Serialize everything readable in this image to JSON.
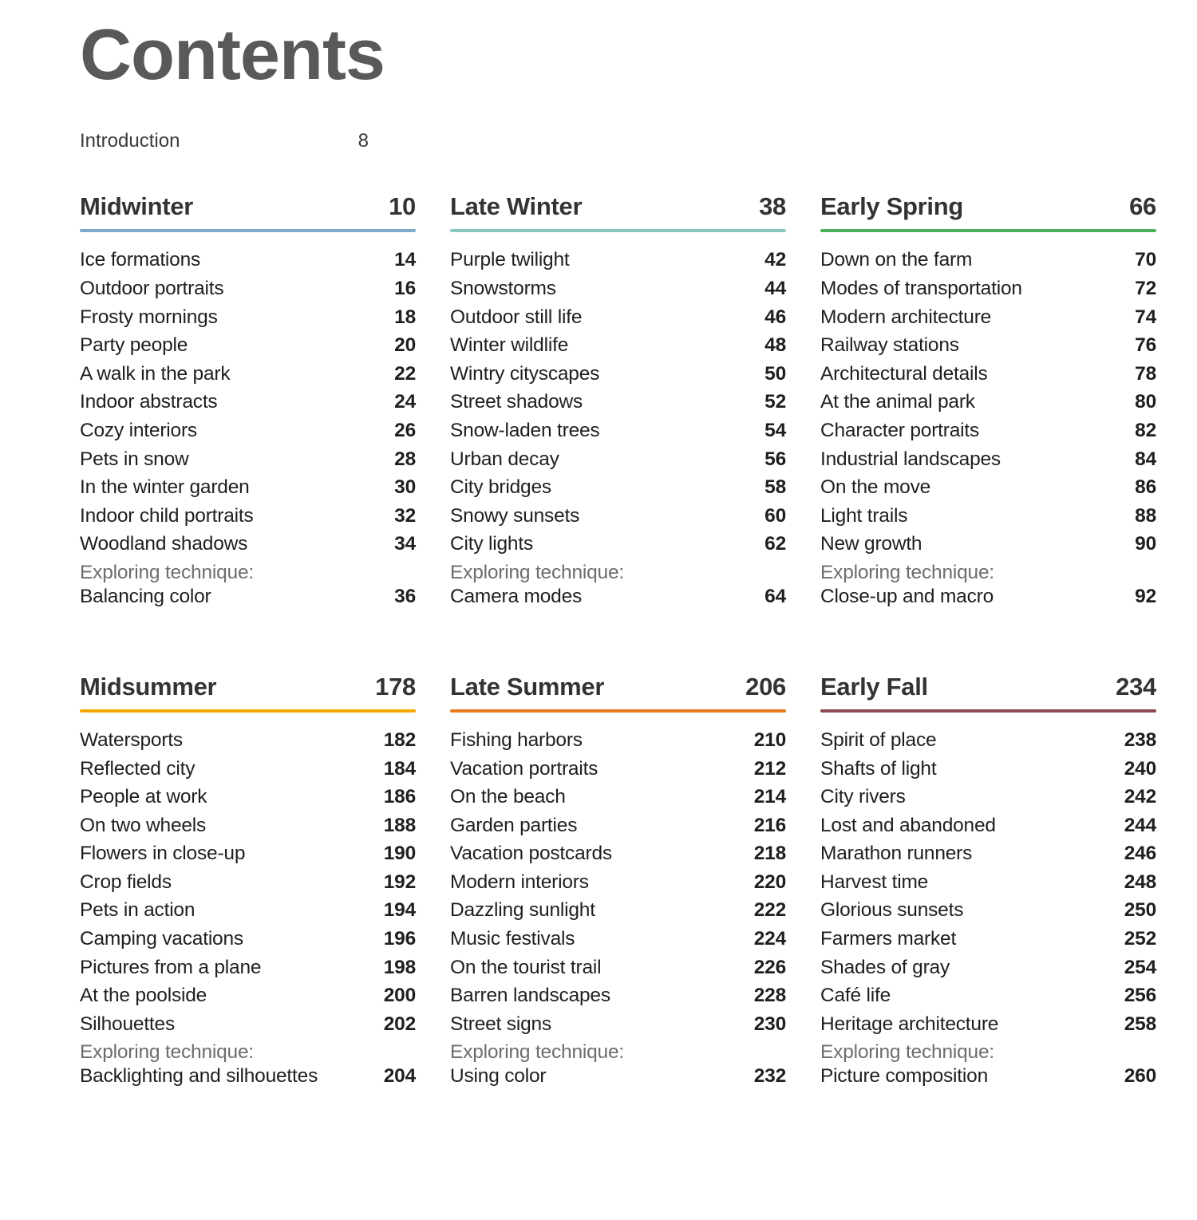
{
  "page": {
    "title": "Contents",
    "intro": {
      "label": "Introduction",
      "page": "8"
    }
  },
  "technique_prefix": "Exploring technique:",
  "sections": [
    {
      "title": "Midwinter",
      "page": "10",
      "rule_color": "#7dabc9",
      "entries": [
        {
          "label": "Ice formations",
          "page": "14"
        },
        {
          "label": "Outdoor portraits",
          "page": "16"
        },
        {
          "label": "Frosty mornings",
          "page": "18"
        },
        {
          "label": "Party people",
          "page": "20"
        },
        {
          "label": "A walk in the park",
          "page": "22"
        },
        {
          "label": "Indoor abstracts",
          "page": "24"
        },
        {
          "label": "Cozy interiors",
          "page": "26"
        },
        {
          "label": "Pets in snow",
          "page": "28"
        },
        {
          "label": "In the winter garden",
          "page": "30"
        },
        {
          "label": "Indoor child portraits",
          "page": "32"
        },
        {
          "label": "Woodland shadows",
          "page": "34"
        }
      ],
      "technique": {
        "label": "Balancing color",
        "page": "36"
      }
    },
    {
      "title": "Late Winter",
      "page": "38",
      "rule_color": "#8ac6c1",
      "entries": [
        {
          "label": "Purple twilight",
          "page": "42"
        },
        {
          "label": "Snowstorms",
          "page": "44"
        },
        {
          "label": "Outdoor still life",
          "page": "46"
        },
        {
          "label": "Winter wildlife",
          "page": "48"
        },
        {
          "label": "Wintry cityscapes",
          "page": "50"
        },
        {
          "label": "Street shadows",
          "page": "52"
        },
        {
          "label": "Snow-laden trees",
          "page": "54"
        },
        {
          "label": "Urban decay",
          "page": "56"
        },
        {
          "label": "City bridges",
          "page": "58"
        },
        {
          "label": "Snowy sunsets",
          "page": "60"
        },
        {
          "label": "City lights",
          "page": "62"
        }
      ],
      "technique": {
        "label": "Camera modes",
        "page": "64"
      }
    },
    {
      "title": "Early Spring",
      "page": "66",
      "rule_color": "#4cae59",
      "entries": [
        {
          "label": "Down on the farm",
          "page": "70"
        },
        {
          "label": "Modes of transportation",
          "page": "72"
        },
        {
          "label": "Modern architecture",
          "page": "74"
        },
        {
          "label": "Railway stations",
          "page": "76"
        },
        {
          "label": "Architectural details",
          "page": "78"
        },
        {
          "label": "At the animal park",
          "page": "80"
        },
        {
          "label": "Character portraits",
          "page": "82"
        },
        {
          "label": "Industrial landscapes",
          "page": "84"
        },
        {
          "label": "On the move",
          "page": "86"
        },
        {
          "label": "Light trails",
          "page": "88"
        },
        {
          "label": "New growth",
          "page": "90"
        }
      ],
      "technique": {
        "label": "Close-up and macro",
        "page": "92"
      }
    },
    {
      "title": "Midsummer",
      "page": "178",
      "rule_color": "#f3a900",
      "entries": [
        {
          "label": "Watersports",
          "page": "182"
        },
        {
          "label": "Reflected city",
          "page": "184"
        },
        {
          "label": "People at work",
          "page": "186"
        },
        {
          "label": "On two wheels",
          "page": "188"
        },
        {
          "label": "Flowers in close-up",
          "page": "190"
        },
        {
          "label": "Crop fields",
          "page": "192"
        },
        {
          "label": "Pets in action",
          "page": "194"
        },
        {
          "label": "Camping vacations",
          "page": "196"
        },
        {
          "label": "Pictures from a plane",
          "page": "198"
        },
        {
          "label": "At the poolside",
          "page": "200"
        },
        {
          "label": "Silhouettes",
          "page": "202"
        }
      ],
      "technique": {
        "label": "Backlighting and silhouettes",
        "page": "204"
      }
    },
    {
      "title": "Late Summer",
      "page": "206",
      "rule_color": "#e8791d",
      "entries": [
        {
          "label": "Fishing harbors",
          "page": "210"
        },
        {
          "label": "Vacation portraits",
          "page": "212"
        },
        {
          "label": "On the beach",
          "page": "214"
        },
        {
          "label": "Garden parties",
          "page": "216"
        },
        {
          "label": "Vacation postcards",
          "page": "218"
        },
        {
          "label": "Modern interiors",
          "page": "220"
        },
        {
          "label": "Dazzling sunlight",
          "page": "222"
        },
        {
          "label": "Music festivals",
          "page": "224"
        },
        {
          "label": "On the tourist trail",
          "page": "226"
        },
        {
          "label": "Barren landscapes",
          "page": "228"
        },
        {
          "label": "Street signs",
          "page": "230"
        }
      ],
      "technique": {
        "label": "Using color",
        "page": "232"
      }
    },
    {
      "title": "Early Fall",
      "page": "234",
      "rule_color": "#8d4a50",
      "entries": [
        {
          "label": "Spirit of place",
          "page": "238"
        },
        {
          "label": "Shafts of light",
          "page": "240"
        },
        {
          "label": "City rivers",
          "page": "242"
        },
        {
          "label": "Lost and abandoned",
          "page": "244"
        },
        {
          "label": "Marathon runners",
          "page": "246"
        },
        {
          "label": "Harvest time",
          "page": "248"
        },
        {
          "label": "Glorious sunsets",
          "page": "250"
        },
        {
          "label": "Farmers market",
          "page": "252"
        },
        {
          "label": "Shades of gray",
          "page": "254"
        },
        {
          "label": "Café life",
          "page": "256"
        },
        {
          "label": "Heritage architecture",
          "page": "258"
        }
      ],
      "technique": {
        "label": "Picture composition",
        "page": "260"
      }
    }
  ]
}
